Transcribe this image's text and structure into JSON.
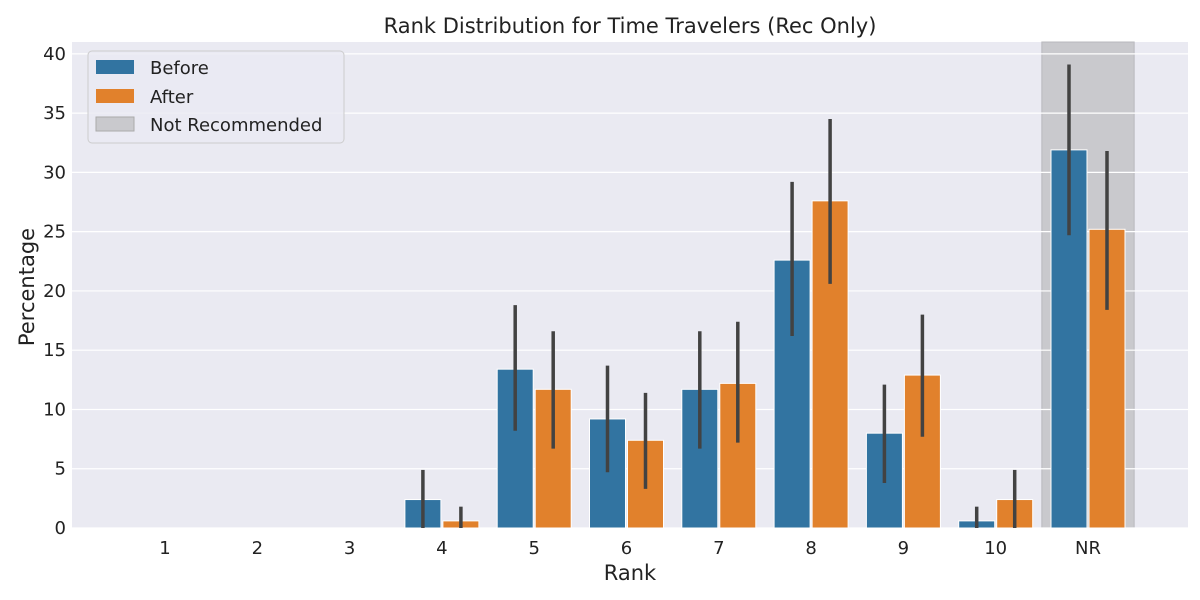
{
  "chart_data": {
    "type": "bar",
    "title": "Rank Distribution for Time Travelers (Rec Only)",
    "xlabel": "Rank",
    "ylabel": "Percentage",
    "categories": [
      "1",
      "2",
      "3",
      "4",
      "5",
      "6",
      "7",
      "8",
      "9",
      "10",
      "NR"
    ],
    "ylim": [
      0,
      41
    ],
    "yticks": [
      0,
      5,
      10,
      15,
      20,
      25,
      30,
      35,
      40
    ],
    "grid": true,
    "legend_position": "top-left",
    "highlight_category": "NR",
    "highlight_label": "Not Recommended",
    "highlight_color": "#c9c9cd",
    "series": [
      {
        "name": "Before",
        "color": "#3274a1",
        "values": [
          0,
          0,
          0,
          2.4,
          13.4,
          9.2,
          11.7,
          22.6,
          8.0,
          0.6,
          31.9
        ],
        "error_low": [
          0,
          0,
          0,
          0,
          8.2,
          4.7,
          6.7,
          16.2,
          3.8,
          0,
          24.7
        ],
        "error_high": [
          0,
          0,
          0,
          4.9,
          18.8,
          13.7,
          16.6,
          29.2,
          12.1,
          1.8,
          39.1
        ]
      },
      {
        "name": "After",
        "color": "#e1812c",
        "values": [
          0,
          0,
          0,
          0.6,
          11.7,
          7.4,
          12.2,
          27.6,
          12.9,
          2.4,
          25.2
        ],
        "error_low": [
          0,
          0,
          0,
          0,
          6.7,
          3.3,
          7.2,
          20.6,
          7.7,
          0,
          18.4
        ],
        "error_high": [
          0,
          0,
          0,
          1.8,
          16.6,
          11.4,
          17.4,
          34.5,
          18.0,
          4.9,
          31.8
        ]
      }
    ]
  }
}
